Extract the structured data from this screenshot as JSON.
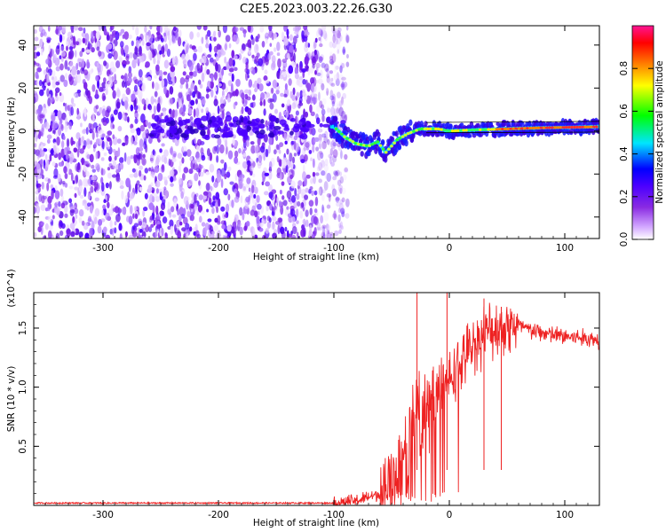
{
  "figure": {
    "title": "C2E5.2023.003.22.26.G30"
  },
  "chart_data": [
    {
      "type": "heatmap",
      "title": "C2E5.2023.003.22.26.G30",
      "xlabel": "Height of straight line (km)",
      "ylabel": "Frequency (Hz)",
      "xlim": [
        -360,
        130
      ],
      "ylim": [
        -50,
        49
      ],
      "xticks": [
        -300,
        -200,
        -100,
        0,
        100
      ],
      "yticks": [
        -40,
        -20,
        0,
        20,
        40
      ],
      "xtick_labels": [
        "-300",
        "-200",
        "-100",
        "0",
        "100"
      ],
      "ytick_labels": [
        "-40",
        "-20",
        "0",
        "20",
        "40"
      ],
      "colorbar": {
        "label": "Normalized spectral amplitude",
        "range": [
          0,
          1
        ],
        "ticks": [
          "0.0",
          "0.2",
          "0.4",
          "0.6",
          "0.8"
        ],
        "colormap": [
          "#ffffff",
          "#d2a6ff",
          "#8a2be2",
          "#4b00ff",
          "#0000ff",
          "#00e5ff",
          "#00ff00",
          "#ffff00",
          "#ff8000",
          "#ff0000",
          "#ff1493"
        ]
      },
      "noise_region_x": [
        -360,
        -100
      ],
      "signal_band_center": [
        {
          "x": -100,
          "y": 2
        },
        {
          "x": -90,
          "y": -3
        },
        {
          "x": -80,
          "y": -6
        },
        {
          "x": -70,
          "y": -7
        },
        {
          "x": -62,
          "y": -5
        },
        {
          "x": -55,
          "y": -10
        },
        {
          "x": -45,
          "y": -4
        },
        {
          "x": -35,
          "y": -1
        },
        {
          "x": -25,
          "y": 1
        },
        {
          "x": -10,
          "y": 1
        },
        {
          "x": 0,
          "y": 0
        },
        {
          "x": 20,
          "y": 0.5
        },
        {
          "x": 50,
          "y": 1
        },
        {
          "x": 80,
          "y": 1.5
        },
        {
          "x": 130,
          "y": 2
        }
      ]
    },
    {
      "type": "line",
      "xlabel": "Height of straight line (km)",
      "ylabel": "SNR (10 * v/v)",
      "yunit": "(x10^4)",
      "xlim": [
        -360,
        130
      ],
      "ylim": [
        0,
        1.8
      ],
      "xticks": [
        -300,
        -200,
        -100,
        0,
        100
      ],
      "yticks": [
        0.5,
        1.0,
        1.5
      ],
      "xtick_labels": [
        "-300",
        "-200",
        "-100",
        "0",
        "100"
      ],
      "ytick_labels": [
        "0.5",
        "1.0",
        "1.5"
      ],
      "series_color": "#ee2222",
      "series": [
        {
          "x": [
            -360,
            -300,
            -200,
            -120,
            -100,
            -80,
            -60,
            -50,
            -40,
            -35,
            -30,
            -25,
            -20,
            -15,
            -10,
            -5,
            0,
            5,
            10,
            20,
            30,
            40,
            50,
            60,
            70,
            80,
            90,
            100,
            110,
            120,
            130
          ],
          "values": [
            0.02,
            0.02,
            0.02,
            0.02,
            0.02,
            0.04,
            0.1,
            0.2,
            0.35,
            0.6,
            0.7,
            0.8,
            0.75,
            0.9,
            0.95,
            1.0,
            1.05,
            1.15,
            1.2,
            1.35,
            1.45,
            1.5,
            1.52,
            1.52,
            1.48,
            1.46,
            1.44,
            1.43,
            1.42,
            1.41,
            1.4
          ]
        }
      ],
      "spikes": [
        {
          "x": -28,
          "y": 1.8
        },
        {
          "x": -2,
          "y": 1.8
        },
        {
          "x": 30,
          "y": 1.75
        },
        {
          "x": 45,
          "y": 1.68
        }
      ]
    }
  ]
}
